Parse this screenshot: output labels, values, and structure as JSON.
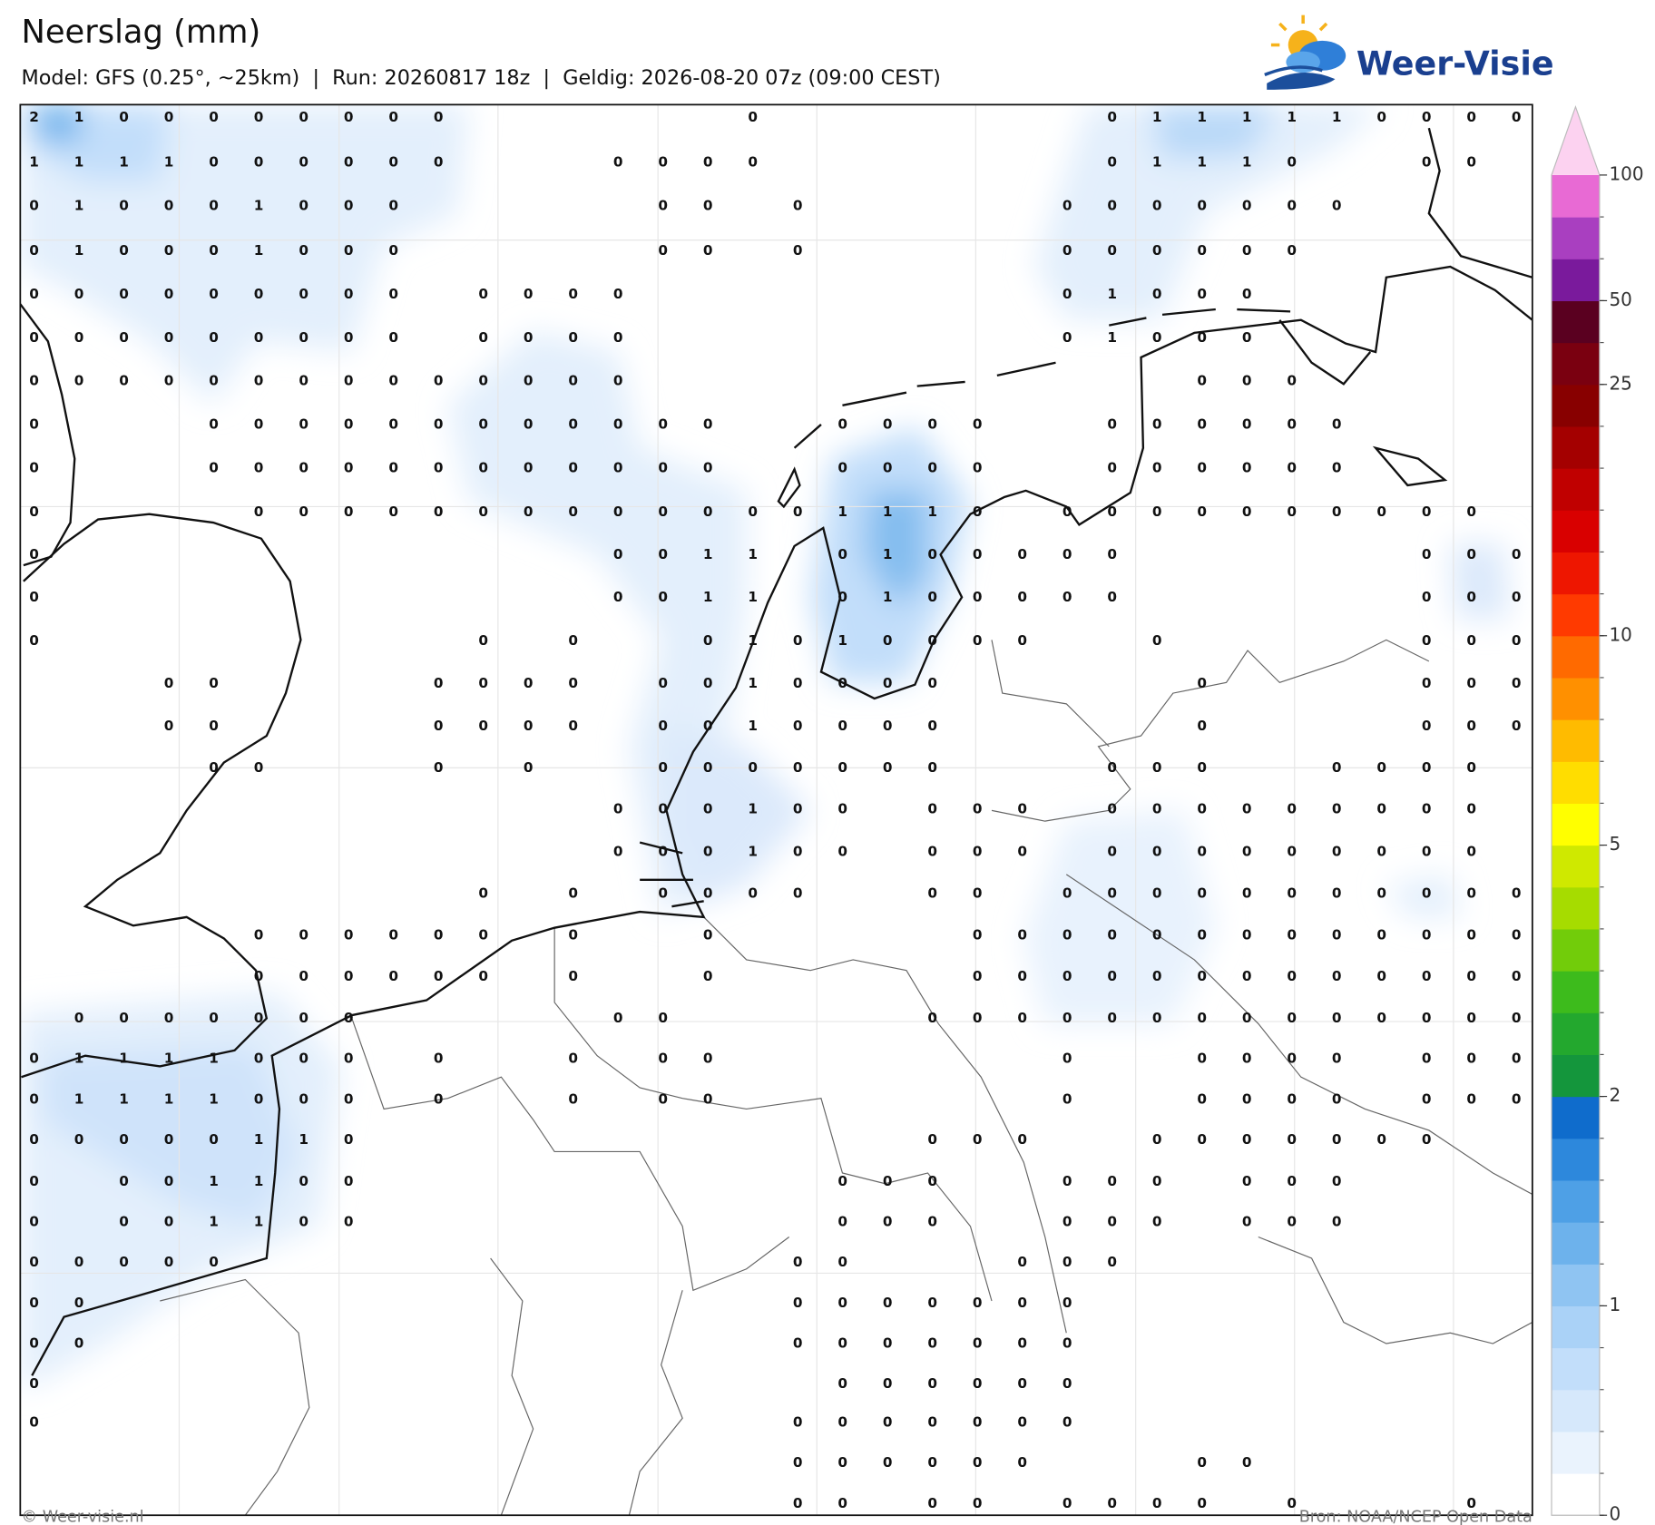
{
  "header": {
    "title": "Neerslag (mm)",
    "subtitle": "Model: GFS (0.25°, ~25km)  |  Run: 20260817 18z  |  Geldig: 2026-08-20 07z (09:00 CEST)",
    "logo": "Weer-Visie"
  },
  "map": {
    "grid": [
      [
        2,
        1,
        0,
        0,
        0,
        0,
        0,
        0,
        0,
        0,
        null,
        null,
        null,
        null,
        null,
        null,
        0,
        null,
        null,
        null,
        null,
        null,
        null,
        null,
        0,
        1,
        1,
        1,
        1,
        1,
        0,
        0,
        0,
        0
      ],
      [
        1,
        1,
        1,
        1,
        0,
        0,
        0,
        0,
        0,
        0,
        null,
        null,
        null,
        0,
        0,
        0,
        0,
        null,
        null,
        null,
        null,
        null,
        null,
        null,
        0,
        1,
        1,
        1,
        0,
        null,
        null,
        0,
        0,
        null
      ],
      [
        0,
        1,
        0,
        0,
        0,
        1,
        0,
        0,
        0,
        null,
        null,
        null,
        null,
        null,
        0,
        0,
        null,
        0,
        null,
        null,
        null,
        null,
        null,
        0,
        0,
        0,
        0,
        0,
        0,
        0,
        null,
        null,
        null,
        null
      ],
      [
        0,
        1,
        0,
        0,
        0,
        1,
        0,
        0,
        0,
        null,
        null,
        null,
        null,
        null,
        0,
        0,
        null,
        0,
        null,
        null,
        null,
        null,
        null,
        0,
        0,
        0,
        0,
        0,
        0,
        null,
        null,
        null,
        null,
        null
      ],
      [
        0,
        0,
        0,
        0,
        0,
        0,
        0,
        0,
        0,
        null,
        0,
        0,
        0,
        0,
        null,
        null,
        null,
        null,
        null,
        null,
        null,
        null,
        null,
        0,
        1,
        0,
        0,
        0,
        null,
        null,
        null,
        null,
        null,
        null
      ],
      [
        0,
        0,
        0,
        0,
        0,
        0,
        0,
        0,
        0,
        null,
        0,
        0,
        0,
        0,
        null,
        null,
        null,
        null,
        null,
        null,
        null,
        null,
        null,
        0,
        1,
        0,
        0,
        0,
        null,
        null,
        null,
        null,
        null,
        null
      ],
      [
        0,
        0,
        0,
        0,
        0,
        0,
        0,
        0,
        0,
        0,
        0,
        0,
        0,
        0,
        null,
        null,
        null,
        null,
        null,
        null,
        null,
        null,
        null,
        null,
        null,
        null,
        0,
        0,
        0,
        null,
        null,
        null,
        null,
        null
      ],
      [
        0,
        null,
        null,
        null,
        0,
        0,
        0,
        0,
        0,
        0,
        0,
        0,
        0,
        0,
        0,
        0,
        null,
        null,
        0,
        0,
        0,
        0,
        null,
        null,
        0,
        0,
        0,
        0,
        0,
        0,
        null,
        null,
        null,
        null
      ],
      [
        0,
        null,
        null,
        null,
        0,
        0,
        0,
        0,
        0,
        0,
        0,
        0,
        0,
        0,
        0,
        0,
        null,
        null,
        0,
        0,
        0,
        0,
        null,
        null,
        0,
        0,
        0,
        0,
        0,
        0,
        null,
        null,
        null,
        null
      ],
      [
        0,
        null,
        null,
        null,
        null,
        0,
        0,
        0,
        0,
        0,
        0,
        0,
        0,
        0,
        0,
        0,
        0,
        0,
        1,
        1,
        1,
        0,
        null,
        0,
        0,
        0,
        0,
        0,
        0,
        0,
        0,
        0,
        0,
        null
      ],
      [
        0,
        null,
        null,
        null,
        null,
        null,
        null,
        null,
        null,
        null,
        null,
        null,
        null,
        0,
        0,
        1,
        1,
        null,
        0,
        1,
        0,
        0,
        0,
        0,
        0,
        null,
        null,
        null,
        null,
        null,
        null,
        0,
        0,
        0
      ],
      [
        0,
        null,
        null,
        null,
        null,
        null,
        null,
        null,
        null,
        null,
        null,
        null,
        null,
        0,
        0,
        1,
        1,
        null,
        0,
        1,
        0,
        0,
        0,
        0,
        0,
        null,
        null,
        null,
        null,
        null,
        null,
        0,
        0,
        0
      ],
      [
        0,
        null,
        null,
        null,
        null,
        null,
        null,
        null,
        null,
        null,
        0,
        null,
        0,
        null,
        null,
        0,
        1,
        0,
        1,
        0,
        0,
        0,
        0,
        null,
        null,
        0,
        null,
        null,
        null,
        null,
        null,
        0,
        0,
        0
      ],
      [
        null,
        null,
        null,
        0,
        0,
        null,
        null,
        null,
        null,
        0,
        0,
        0,
        0,
        null,
        0,
        0,
        1,
        0,
        0,
        0,
        0,
        null,
        null,
        null,
        null,
        null,
        0,
        null,
        null,
        null,
        null,
        0,
        0,
        0
      ],
      [
        null,
        null,
        null,
        0,
        0,
        null,
        null,
        null,
        null,
        0,
        0,
        0,
        0,
        null,
        0,
        0,
        1,
        0,
        0,
        0,
        0,
        null,
        null,
        null,
        null,
        null,
        0,
        null,
        null,
        null,
        null,
        0,
        0,
        0
      ],
      [
        null,
        null,
        null,
        null,
        0,
        0,
        null,
        null,
        null,
        0,
        null,
        0,
        null,
        null,
        0,
        0,
        0,
        0,
        0,
        0,
        0,
        null,
        null,
        null,
        0,
        0,
        0,
        null,
        null,
        0,
        0,
        0,
        0,
        null
      ],
      [
        null,
        null,
        null,
        null,
        null,
        null,
        null,
        null,
        null,
        null,
        null,
        null,
        null,
        0,
        0,
        0,
        1,
        0,
        0,
        null,
        0,
        0,
        0,
        null,
        0,
        0,
        0,
        0,
        0,
        0,
        0,
        0,
        0,
        null
      ],
      [
        null,
        null,
        null,
        null,
        null,
        null,
        null,
        null,
        null,
        null,
        null,
        null,
        null,
        0,
        0,
        0,
        1,
        0,
        0,
        null,
        0,
        0,
        0,
        null,
        0,
        0,
        0,
        0,
        0,
        0,
        0,
        0,
        0,
        null
      ],
      [
        null,
        null,
        null,
        null,
        null,
        null,
        null,
        null,
        null,
        null,
        0,
        null,
        0,
        null,
        0,
        0,
        0,
        0,
        null,
        null,
        0,
        0,
        null,
        0,
        0,
        0,
        0,
        0,
        0,
        0,
        0,
        0,
        0,
        0
      ],
      [
        null,
        null,
        null,
        null,
        null,
        0,
        0,
        0,
        0,
        0,
        0,
        null,
        0,
        null,
        null,
        0,
        null,
        null,
        null,
        null,
        null,
        0,
        0,
        0,
        0,
        0,
        0,
        0,
        0,
        0,
        0,
        0,
        0,
        0
      ],
      [
        null,
        null,
        null,
        null,
        null,
        0,
        0,
        0,
        0,
        0,
        0,
        null,
        0,
        null,
        null,
        0,
        null,
        null,
        null,
        null,
        null,
        0,
        0,
        0,
        0,
        0,
        0,
        0,
        0,
        0,
        0,
        0,
        0,
        0
      ],
      [
        null,
        0,
        0,
        0,
        0,
        0,
        0,
        0,
        null,
        null,
        null,
        null,
        null,
        0,
        0,
        null,
        null,
        null,
        null,
        null,
        0,
        0,
        0,
        0,
        0,
        0,
        0,
        0,
        0,
        0,
        0,
        0,
        0,
        0
      ],
      [
        0,
        1,
        1,
        1,
        1,
        0,
        0,
        0,
        null,
        0,
        null,
        null,
        0,
        null,
        0,
        0,
        null,
        null,
        null,
        null,
        null,
        null,
        null,
        0,
        null,
        null,
        0,
        0,
        0,
        0,
        null,
        0,
        0,
        0
      ],
      [
        0,
        1,
        1,
        1,
        1,
        0,
        0,
        0,
        null,
        0,
        null,
        null,
        0,
        null,
        0,
        0,
        null,
        null,
        null,
        null,
        null,
        null,
        null,
        0,
        null,
        null,
        0,
        0,
        0,
        0,
        null,
        0,
        0,
        0
      ],
      [
        0,
        0,
        0,
        0,
        0,
        1,
        1,
        0,
        null,
        null,
        null,
        null,
        null,
        null,
        null,
        null,
        null,
        null,
        null,
        null,
        0,
        0,
        0,
        null,
        null,
        0,
        0,
        0,
        0,
        0,
        0,
        0,
        null,
        null
      ],
      [
        0,
        null,
        0,
        0,
        1,
        1,
        0,
        0,
        null,
        null,
        null,
        null,
        null,
        null,
        null,
        null,
        null,
        null,
        0,
        0,
        0,
        null,
        null,
        0,
        0,
        0,
        null,
        0,
        0,
        0,
        null,
        null,
        null,
        null
      ],
      [
        0,
        null,
        0,
        0,
        1,
        1,
        0,
        0,
        null,
        null,
        null,
        null,
        null,
        null,
        null,
        null,
        null,
        null,
        0,
        0,
        0,
        null,
        null,
        0,
        0,
        0,
        null,
        0,
        0,
        0,
        null,
        null,
        null,
        null
      ],
      [
        0,
        0,
        0,
        0,
        0,
        null,
        null,
        null,
        null,
        null,
        null,
        null,
        null,
        null,
        null,
        null,
        null,
        0,
        0,
        null,
        null,
        null,
        0,
        0,
        0,
        null,
        null,
        null,
        null,
        null,
        null,
        null,
        null,
        null
      ],
      [
        0,
        0,
        null,
        null,
        null,
        null,
        null,
        null,
        null,
        null,
        null,
        null,
        null,
        null,
        null,
        null,
        null,
        0,
        0,
        0,
        0,
        0,
        0,
        0,
        null,
        null,
        null,
        null,
        null,
        null,
        null,
        null,
        null,
        null
      ],
      [
        0,
        0,
        null,
        null,
        null,
        null,
        null,
        null,
        null,
        null,
        null,
        null,
        null,
        null,
        null,
        null,
        null,
        0,
        0,
        0,
        0,
        0,
        0,
        0,
        null,
        null,
        null,
        null,
        null,
        null,
        null,
        null,
        null,
        null
      ],
      [
        0,
        null,
        null,
        null,
        null,
        null,
        null,
        null,
        null,
        null,
        null,
        null,
        null,
        null,
        null,
        null,
        null,
        null,
        0,
        0,
        0,
        0,
        0,
        0,
        null,
        null,
        null,
        null,
        null,
        null,
        null,
        null,
        null,
        null
      ],
      [
        0,
        null,
        null,
        null,
        null,
        null,
        null,
        null,
        null,
        null,
        null,
        null,
        null,
        null,
        null,
        null,
        null,
        0,
        0,
        0,
        0,
        0,
        0,
        0,
        null,
        null,
        null,
        null,
        null,
        null,
        null,
        null,
        null,
        null
      ],
      [
        null,
        null,
        null,
        null,
        null,
        null,
        null,
        null,
        null,
        null,
        null,
        null,
        null,
        null,
        null,
        null,
        null,
        0,
        0,
        0,
        0,
        0,
        0,
        null,
        null,
        null,
        0,
        0,
        null,
        null,
        null,
        null,
        null,
        null
      ],
      [
        null,
        null,
        null,
        null,
        null,
        null,
        null,
        null,
        null,
        null,
        null,
        null,
        null,
        null,
        null,
        null,
        null,
        0,
        0,
        null,
        0,
        0,
        null,
        0,
        0,
        0,
        0,
        null,
        0,
        null,
        null,
        null,
        0,
        null
      ]
    ]
  },
  "colorbar": {
    "ticks": [
      0,
      1,
      2,
      5,
      10,
      25,
      50,
      100
    ],
    "colors": [
      "#ffffff",
      "#eaf3fd",
      "#d6e8fb",
      "#c2defa",
      "#aad2f7",
      "#8fc4f2",
      "#6db2ec",
      "#4ea0e6",
      "#2d88dc",
      "#0f6ccc",
      "#14963c",
      "#23a82e",
      "#3dbb1c",
      "#72cc0a",
      "#a6dc00",
      "#cfe900",
      "#ffff00",
      "#ffdd00",
      "#ffbb00",
      "#ff9000",
      "#ff6a00",
      "#ff3a00",
      "#ee1600",
      "#d90000",
      "#c00000",
      "#a40000",
      "#880000",
      "#7a0010",
      "#5a0020",
      "#7a1a9c",
      "#a93fc0",
      "#e86ad4"
    ],
    "top_color": "#fcd2f0"
  },
  "footer": {
    "left": "© Weer-visie.nl",
    "right": "Bron: NOAA/NCEP Open Data"
  }
}
